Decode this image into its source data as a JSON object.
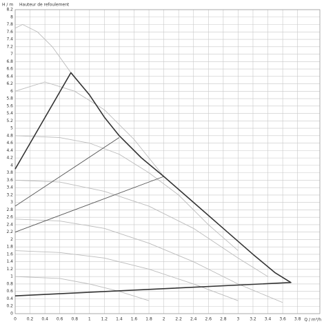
{
  "chart_data": {
    "type": "line",
    "y_label": "H / m",
    "y_subtitle": "Hauteur de refoulement",
    "x_label": "Q / m³/h",
    "xlim": [
      0,
      4.1
    ],
    "ylim": [
      0,
      8.2
    ],
    "xticks": [
      0,
      0.2,
      0.4,
      0.6,
      0.8,
      1,
      1.2,
      1.4,
      1.6,
      1.8,
      2,
      2.2,
      2.4,
      2.6,
      2.8,
      3,
      3.2,
      3.4,
      3.6,
      3.8
    ],
    "yticks": [
      0,
      0.2,
      0.4,
      0.6,
      0.8,
      1,
      1.2,
      1.4,
      1.6,
      1.8,
      2,
      2.2,
      2.4,
      2.6,
      2.8,
      3,
      3.2,
      3.4,
      3.6,
      3.8,
      4,
      4.2,
      4.4,
      4.6,
      4.8,
      5,
      5.2,
      5.4,
      5.6,
      5.8,
      6,
      6.2,
      6.4,
      6.6,
      6.8,
      7,
      7.2,
      7.4,
      7.6,
      7.8,
      8,
      8.2
    ],
    "grid": true,
    "series": [
      {
        "color": "#bbbbbb",
        "x": [
          0,
          0.1,
          0.3,
          0.5,
          0.75
        ],
        "values": [
          7.7,
          7.8,
          7.6,
          7.2,
          6.5
        ]
      },
      {
        "color": "#bbbbbb",
        "x": [
          0,
          0.4,
          0.8,
          1.2,
          1.6,
          2.0
        ],
        "values": [
          6.0,
          6.25,
          6.0,
          5.5,
          4.7,
          3.7
        ]
      },
      {
        "color": "#bbbbbb",
        "x": [
          0,
          0.6,
          1.0,
          1.4,
          1.8,
          2.2,
          2.6,
          3.0
        ],
        "values": [
          4.8,
          4.75,
          4.6,
          4.3,
          3.8,
          3.2,
          2.4,
          1.7
        ]
      },
      {
        "color": "#bbbbbb",
        "x": [
          0,
          0.6,
          1.2,
          1.8,
          2.4,
          3.0,
          3.4
        ],
        "values": [
          3.6,
          3.55,
          3.3,
          2.9,
          2.3,
          1.5,
          1.0
        ]
      },
      {
        "color": "#bbbbbb",
        "x": [
          0,
          0.6,
          1.2,
          1.8,
          2.4,
          3.0,
          3.6
        ],
        "values": [
          2.55,
          2.5,
          2.3,
          1.9,
          1.4,
          0.8,
          0.3
        ]
      },
      {
        "color": "#bbbbbb",
        "x": [
          0,
          0.6,
          1.2,
          1.8,
          2.4,
          3.0
        ],
        "values": [
          1.7,
          1.65,
          1.5,
          1.2,
          0.8,
          0.35
        ]
      },
      {
        "color": "#bbbbbb",
        "x": [
          0,
          0.6,
          1.0,
          1.4,
          1.8
        ],
        "values": [
          1.0,
          0.95,
          0.8,
          0.6,
          0.35
        ]
      },
      {
        "color": "#555555",
        "x": [
          0,
          1.4
        ],
        "values": [
          2.9,
          4.75
        ]
      },
      {
        "color": "#555555",
        "x": [
          0,
          2.0
        ],
        "values": [
          2.2,
          3.7
        ]
      },
      {
        "color": "#333333",
        "x": [
          0,
          0.75,
          1.0,
          1.2,
          1.4,
          1.7,
          2.0,
          2.4,
          2.8,
          3.2,
          3.5,
          3.71,
          0
        ],
        "values": [
          3.9,
          6.5,
          5.9,
          5.3,
          4.8,
          4.2,
          3.7,
          3.0,
          2.3,
          1.6,
          1.1,
          0.84,
          0.48
        ]
      }
    ]
  }
}
